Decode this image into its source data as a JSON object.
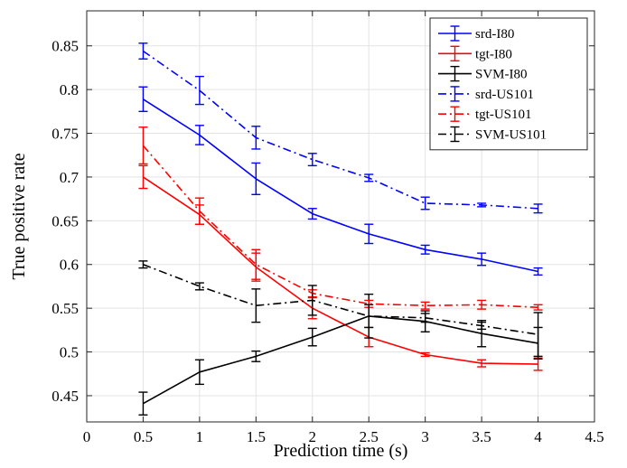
{
  "chart_data": {
    "type": "line",
    "xlabel": "Prediction time (s)",
    "ylabel": "True positive rate",
    "xlim": [
      0,
      4.5
    ],
    "ylim": [
      0.42,
      0.89
    ],
    "grid": true,
    "legend_position": "top-right",
    "x_ticks": [
      0,
      0.5,
      1,
      1.5,
      2,
      2.5,
      3,
      3.5,
      4,
      4.5
    ],
    "x_tick_labels": [
      "0",
      "0.5",
      "1",
      "1.5",
      "2",
      "2.5",
      "3",
      "3.5",
      "4",
      "4.5"
    ],
    "y_ticks": [
      0.45,
      0.5,
      0.55,
      0.6,
      0.65,
      0.7,
      0.75,
      0.8,
      0.85
    ],
    "y_tick_labels": [
      "0.45",
      "0.5",
      "0.55",
      "0.6",
      "0.65",
      "0.7",
      "0.75",
      "0.8",
      "0.85"
    ],
    "x": [
      0.5,
      1,
      1.5,
      2,
      2.5,
      3,
      3.5,
      4
    ],
    "series": [
      {
        "name": "srd-I80",
        "color": "#0000ff",
        "line_style": "solid",
        "values": [
          0.789,
          0.748,
          0.698,
          0.658,
          0.635,
          0.617,
          0.606,
          0.592
        ],
        "errors": [
          0.014,
          0.011,
          0.018,
          0.006,
          0.011,
          0.005,
          0.007,
          0.004
        ]
      },
      {
        "name": "tgt-I80",
        "color": "#ff0000",
        "line_style": "solid",
        "values": [
          0.7,
          0.657,
          0.597,
          0.55,
          0.517,
          0.497,
          0.487,
          0.486
        ],
        "errors": [
          0.013,
          0.011,
          0.016,
          0.012,
          0.011,
          0.002,
          0.004,
          0.007
        ]
      },
      {
        "name": "SVM-I80",
        "color": "#000000",
        "line_style": "solid",
        "values": [
          0.441,
          0.477,
          0.495,
          0.517,
          0.541,
          0.535,
          0.521,
          0.51
        ],
        "errors": [
          0.013,
          0.014,
          0.006,
          0.01,
          0.025,
          0.012,
          0.015,
          0.018
        ]
      },
      {
        "name": "srd-US101",
        "color": "#0000ff",
        "line_style": "dashdot",
        "values": [
          0.844,
          0.799,
          0.745,
          0.72,
          0.699,
          0.67,
          0.668,
          0.664
        ],
        "errors": [
          0.009,
          0.016,
          0.013,
          0.007,
          0.004,
          0.007,
          0.002,
          0.005
        ]
      },
      {
        "name": "tgt-US101",
        "color": "#ff0000",
        "line_style": "dashdot",
        "values": [
          0.736,
          0.661,
          0.6,
          0.567,
          0.555,
          0.553,
          0.554,
          0.551
        ],
        "errors": [
          0.021,
          0.015,
          0.017,
          0.004,
          0.004,
          0.004,
          0.005,
          0.003
        ]
      },
      {
        "name": "SVM-US101",
        "color": "#000000",
        "line_style": "dashdot",
        "values": [
          0.6,
          0.575,
          0.553,
          0.559,
          0.541,
          0.539,
          0.53,
          0.52
        ],
        "errors": [
          0.004,
          0.004,
          0.019,
          0.017,
          0.013,
          0.005,
          0.004,
          0.025
        ]
      }
    ]
  }
}
